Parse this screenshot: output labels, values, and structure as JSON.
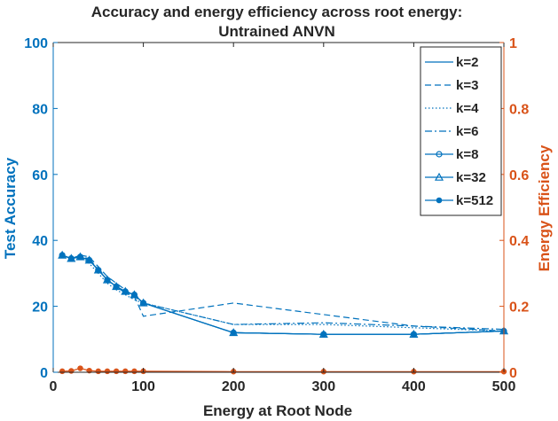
{
  "colors": {
    "left_axis": "#0072BD",
    "right_axis": "#D95319",
    "text": "#262626",
    "legend_border": "#262626"
  },
  "chart_data": {
    "type": "line",
    "title_lines": [
      "Accuracy and energy efficiency across root energy:",
      "Untrained ANVN"
    ],
    "xlabel": "Energy at Root Node",
    "ylabel_left": "Test Accuracy",
    "ylabel_right": "Energy Efficiency",
    "xlim": [
      0,
      500
    ],
    "ylim_left": [
      0,
      100
    ],
    "ylim_right": [
      0,
      1
    ],
    "xticks": [
      "0",
      "100",
      "200",
      "300",
      "400",
      "500"
    ],
    "yticks_left": [
      "0",
      "20",
      "40",
      "60",
      "80",
      "100"
    ],
    "yticks_right": [
      "0",
      "0.2",
      "0.4",
      "0.6",
      "0.8",
      "1"
    ],
    "legend_position": "top-right",
    "x": [
      10,
      20,
      30,
      40,
      50,
      60,
      70,
      80,
      90,
      100,
      200,
      300,
      400,
      500
    ],
    "series": [
      {
        "name": "k=2",
        "axis": "left",
        "dash": "solid",
        "marker": "none",
        "values": [
          35.5,
          34.5,
          35,
          34,
          31,
          28,
          26,
          24.5,
          23.5,
          21,
          12,
          11.5,
          11.5,
          12.5
        ]
      },
      {
        "name": "k=3",
        "axis": "left",
        "dash": "dashed",
        "marker": "none",
        "values": [
          35.5,
          34.5,
          35.5,
          35,
          32,
          29,
          27,
          25,
          23,
          17,
          21,
          17.5,
          14,
          12.5
        ]
      },
      {
        "name": "k=4",
        "axis": "left",
        "dash": "dotted",
        "marker": "none",
        "values": [
          35.5,
          34.5,
          35,
          33,
          30,
          27,
          25,
          23.5,
          22,
          21,
          14.5,
          14.5,
          13.5,
          12.5
        ]
      },
      {
        "name": "k=6",
        "axis": "left",
        "dash": "dashdot",
        "marker": "none",
        "values": [
          35.5,
          34.5,
          35,
          34.5,
          31,
          28,
          26,
          24,
          23,
          21,
          14.5,
          15,
          14,
          13
        ]
      },
      {
        "name": "k=8",
        "axis": "left",
        "dash": "solid",
        "marker": "circle",
        "values": [
          35.5,
          34.5,
          35,
          34,
          31,
          28,
          26,
          24.5,
          23.5,
          21,
          12,
          11.5,
          11.5,
          12.5
        ]
      },
      {
        "name": "k=32",
        "axis": "left",
        "dash": "solid",
        "marker": "triangle",
        "values": [
          35.5,
          34.5,
          35,
          34,
          31,
          28,
          26,
          24.5,
          23.5,
          21,
          12,
          11.5,
          11.5,
          12.5
        ]
      },
      {
        "name": "k=512",
        "axis": "left",
        "dash": "solid",
        "marker": "dot",
        "values": [
          35.5,
          34.5,
          35,
          34,
          31,
          28,
          26,
          24.5,
          23.5,
          21,
          12,
          11.5,
          11.5,
          12.5
        ]
      }
    ],
    "efficiency_series": {
      "axis": "right",
      "values": [
        0.003,
        0.004,
        0.012,
        0.005,
        0.003,
        0.003,
        0.003,
        0.003,
        0.003,
        0.003,
        0.002,
        0.002,
        0.002,
        0.002
      ]
    }
  }
}
